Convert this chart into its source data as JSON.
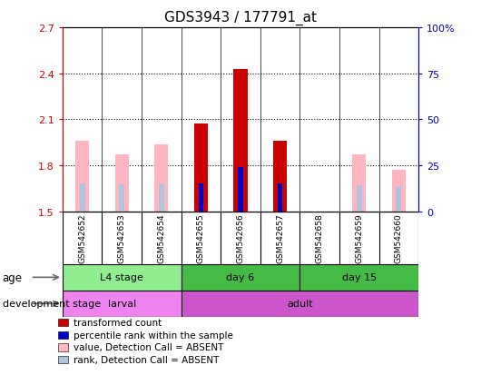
{
  "title": "GDS3943 / 177791_at",
  "samples": [
    "GSM542652",
    "GSM542653",
    "GSM542654",
    "GSM542655",
    "GSM542656",
    "GSM542657",
    "GSM542658",
    "GSM542659",
    "GSM542660"
  ],
  "ylim_left": [
    1.5,
    2.7
  ],
  "ylim_right": [
    0,
    100
  ],
  "yticks_left": [
    1.5,
    1.8,
    2.1,
    2.4,
    2.7
  ],
  "yticks_right": [
    0,
    25,
    50,
    75,
    100
  ],
  "ytick_labels_right": [
    "0",
    "25",
    "50",
    "75",
    "100%"
  ],
  "bar_width": 0.35,
  "absent_value_heights": [
    1.96,
    1.87,
    1.94,
    null,
    null,
    null,
    null,
    1.87,
    1.77
  ],
  "absent_rank_heights": [
    1.685,
    1.675,
    1.68,
    null,
    null,
    null,
    null,
    1.67,
    1.665
  ],
  "present_value_heights": [
    null,
    null,
    null,
    2.075,
    2.43,
    1.96,
    null,
    null,
    null
  ],
  "present_rank_heights": [
    null,
    null,
    null,
    1.685,
    1.79,
    1.685,
    null,
    null,
    null
  ],
  "age_groups": [
    {
      "label": "L4 stage",
      "start": 0,
      "end": 3,
      "color": "#90EE90"
    },
    {
      "label": "day 6",
      "start": 3,
      "end": 6,
      "color": "#44BB44"
    },
    {
      "label": "day 15",
      "start": 6,
      "end": 9,
      "color": "#44BB44"
    }
  ],
  "dev_groups": [
    {
      "label": "larval",
      "start": 0,
      "end": 3,
      "color": "#EE82EE"
    },
    {
      "label": "adult",
      "start": 3,
      "end": 9,
      "color": "#CC55CC"
    }
  ],
  "color_absent_value": "#FFB6C1",
  "color_absent_rank": "#B0C4DE",
  "color_present_value": "#CC0000",
  "color_present_rank": "#0000CC",
  "bg_color": "#FFFFFF",
  "left_axis_color": "#CC0000",
  "right_axis_color": "#0000BB",
  "sample_bg_color": "#C8C8C8",
  "grid_yticks": [
    1.8,
    2.1,
    2.4
  ],
  "legend_items": [
    {
      "color": "#CC0000",
      "label": "transformed count"
    },
    {
      "color": "#0000CC",
      "label": "percentile rank within the sample"
    },
    {
      "color": "#FFB6C1",
      "label": "value, Detection Call = ABSENT"
    },
    {
      "color": "#B0C4DE",
      "label": "rank, Detection Call = ABSENT"
    }
  ]
}
